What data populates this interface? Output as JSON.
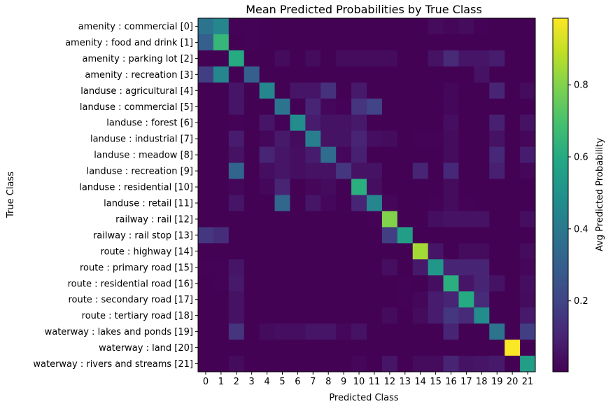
{
  "chart_data": {
    "type": "heatmap",
    "title": "Mean Predicted Probabilities by True Class",
    "xlabel": "Predicted Class",
    "ylabel": "True Class",
    "colorbar_label": "Avg Predicted Probability",
    "colormap": "viridis",
    "vmin": 0.003,
    "vmax": 0.985,
    "colorbar_ticks": [
      0.2,
      0.4,
      0.6,
      0.8
    ],
    "colorbar_tick_labels": [
      "0.2",
      "0.4",
      "0.6",
      "0.8"
    ],
    "x_tick_labels": [
      "0",
      "1",
      "2",
      "3",
      "4",
      "5",
      "6",
      "7",
      "8",
      "9",
      "10",
      "11",
      "12",
      "13",
      "14",
      "15",
      "16",
      "17",
      "18",
      "19",
      "20",
      "21"
    ],
    "y_tick_labels": [
      "amenity : commercial [0]",
      "amenity : food and drink [1]",
      "amenity : parking lot [2]",
      "amenity : recreation [3]",
      "landuse : agricultural [4]",
      "landuse : commercial [5]",
      "landuse : forest [6]",
      "landuse : industrial [7]",
      "landuse : meadow [8]",
      "landuse : recreation [9]",
      "landuse : residential [10]",
      "landuse : retail [11]",
      "railway : rail [12]",
      "railway : rail stop [13]",
      "route : highway [14]",
      "route : primary road [15]",
      "route : residential road [16]",
      "route : secondary road [17]",
      "route : tertiary road [18]",
      "waterway : lakes and ponds [19]",
      "waterway : land [20]",
      "waterway : rivers and streams [21]"
    ],
    "values": [
      [
        0.38,
        0.45,
        0.01,
        0.01,
        0.005,
        0.005,
        0.005,
        0.005,
        0.005,
        0.005,
        0.005,
        0.005,
        0.005,
        0.005,
        0.005,
        0.03,
        0.02,
        0.03,
        0.01,
        0.005,
        0.005,
        0.005
      ],
      [
        0.3,
        0.65,
        0.005,
        0.01,
        0.005,
        0.005,
        0.005,
        0.005,
        0.005,
        0.005,
        0.005,
        0.005,
        0.005,
        0.005,
        0.005,
        0.005,
        0.005,
        0.005,
        0.005,
        0.005,
        0.005,
        0.005
      ],
      [
        0.005,
        0.005,
        0.6,
        0.005,
        0.005,
        0.03,
        0.005,
        0.03,
        0.005,
        0.03,
        0.03,
        0.03,
        0.03,
        0.005,
        0.005,
        0.05,
        0.12,
        0.06,
        0.06,
        0.08,
        0.005,
        0.005
      ],
      [
        0.18,
        0.45,
        0.005,
        0.3,
        0.005,
        0.005,
        0.005,
        0.005,
        0.005,
        0.005,
        0.005,
        0.005,
        0.005,
        0.005,
        0.005,
        0.005,
        0.005,
        0.005,
        0.05,
        0.005,
        0.005,
        0.005
      ],
      [
        0.005,
        0.005,
        0.06,
        0.005,
        0.45,
        0.005,
        0.06,
        0.06,
        0.14,
        0.005,
        0.07,
        0.005,
        0.005,
        0.005,
        0.005,
        0.005,
        0.02,
        0.005,
        0.005,
        0.1,
        0.005,
        0.03
      ],
      [
        0.005,
        0.005,
        0.06,
        0.005,
        0.005,
        0.38,
        0.005,
        0.1,
        0.02,
        0.01,
        0.15,
        0.2,
        0.005,
        0.005,
        0.005,
        0.005,
        0.02,
        0.005,
        0.005,
        0.005,
        0.005,
        0.005
      ],
      [
        0.005,
        0.005,
        0.01,
        0.005,
        0.06,
        0.01,
        0.48,
        0.08,
        0.05,
        0.05,
        0.07,
        0.005,
        0.005,
        0.005,
        0.005,
        0.005,
        0.04,
        0.005,
        0.005,
        0.09,
        0.005,
        0.05
      ],
      [
        0.005,
        0.005,
        0.08,
        0.005,
        0.02,
        0.07,
        0.03,
        0.42,
        0.05,
        0.05,
        0.1,
        0.04,
        0.03,
        0.005,
        0.01,
        0.01,
        0.03,
        0.005,
        0.005,
        0.05,
        0.005,
        0.02
      ],
      [
        0.005,
        0.005,
        0.05,
        0.005,
        0.1,
        0.06,
        0.04,
        0.08,
        0.35,
        0.02,
        0.09,
        0.005,
        0.005,
        0.005,
        0.005,
        0.005,
        0.03,
        0.005,
        0.005,
        0.11,
        0.005,
        0.08
      ],
      [
        0.005,
        0.005,
        0.32,
        0.005,
        0.04,
        0.06,
        0.04,
        0.05,
        0.05,
        0.16,
        0.05,
        0.05,
        0.005,
        0.005,
        0.1,
        0.005,
        0.11,
        0.005,
        0.005,
        0.09,
        0.005,
        0.02
      ],
      [
        0.005,
        0.005,
        0.02,
        0.005,
        0.02,
        0.1,
        0.005,
        0.02,
        0.03,
        0.005,
        0.62,
        0.04,
        0.005,
        0.005,
        0.005,
        0.005,
        0.03,
        0.005,
        0.005,
        0.005,
        0.005,
        0.005
      ],
      [
        0.005,
        0.005,
        0.06,
        0.005,
        0.005,
        0.33,
        0.005,
        0.06,
        0.02,
        0.005,
        0.1,
        0.45,
        0.02,
        0.005,
        0.005,
        0.01,
        0.03,
        0.01,
        0.005,
        0.005,
        0.005,
        0.005
      ],
      [
        0.005,
        0.005,
        0.005,
        0.005,
        0.005,
        0.005,
        0.005,
        0.005,
        0.005,
        0.005,
        0.005,
        0.01,
        0.8,
        0.005,
        0.005,
        0.04,
        0.05,
        0.05,
        0.05,
        0.005,
        0.005,
        0.04
      ],
      [
        0.16,
        0.13,
        0.005,
        0.005,
        0.005,
        0.005,
        0.005,
        0.005,
        0.005,
        0.005,
        0.005,
        0.005,
        0.18,
        0.55,
        0.005,
        0.005,
        0.005,
        0.005,
        0.005,
        0.005,
        0.005,
        0.005
      ],
      [
        0.005,
        0.005,
        0.005,
        0.005,
        0.005,
        0.005,
        0.005,
        0.005,
        0.005,
        0.005,
        0.005,
        0.005,
        0.005,
        0.005,
        0.85,
        0.06,
        0.005,
        0.03,
        0.03,
        0.005,
        0.005,
        0.03
      ],
      [
        0.01,
        0.01,
        0.06,
        0.005,
        0.005,
        0.005,
        0.005,
        0.005,
        0.005,
        0.005,
        0.005,
        0.005,
        0.04,
        0.005,
        0.07,
        0.52,
        0.1,
        0.1,
        0.1,
        0.005,
        0.005,
        0.02
      ],
      [
        0.005,
        0.01,
        0.07,
        0.005,
        0.005,
        0.005,
        0.005,
        0.005,
        0.005,
        0.005,
        0.005,
        0.005,
        0.005,
        0.01,
        0.005,
        0.04,
        0.62,
        0.06,
        0.1,
        0.05,
        0.005,
        0.04
      ],
      [
        0.005,
        0.005,
        0.05,
        0.005,
        0.005,
        0.005,
        0.005,
        0.005,
        0.005,
        0.005,
        0.005,
        0.005,
        0.005,
        0.01,
        0.02,
        0.08,
        0.1,
        0.6,
        0.12,
        0.005,
        0.005,
        0.03
      ],
      [
        0.005,
        0.005,
        0.05,
        0.005,
        0.005,
        0.005,
        0.005,
        0.005,
        0.005,
        0.005,
        0.005,
        0.005,
        0.03,
        0.005,
        0.03,
        0.08,
        0.16,
        0.12,
        0.48,
        0.005,
        0.005,
        0.07
      ],
      [
        0.005,
        0.005,
        0.15,
        0.005,
        0.03,
        0.04,
        0.04,
        0.06,
        0.06,
        0.02,
        0.05,
        0.005,
        0.005,
        0.005,
        0.005,
        0.005,
        0.1,
        0.005,
        0.005,
        0.38,
        0.005,
        0.18
      ],
      [
        0.005,
        0.005,
        0.005,
        0.005,
        0.005,
        0.005,
        0.005,
        0.005,
        0.005,
        0.005,
        0.005,
        0.005,
        0.005,
        0.005,
        0.005,
        0.005,
        0.005,
        0.005,
        0.005,
        0.005,
        0.98,
        0.005
      ],
      [
        0.005,
        0.005,
        0.03,
        0.005,
        0.005,
        0.005,
        0.005,
        0.005,
        0.005,
        0.005,
        0.02,
        0.005,
        0.06,
        0.005,
        0.03,
        0.03,
        0.1,
        0.05,
        0.06,
        0.07,
        0.005,
        0.55
      ]
    ]
  }
}
